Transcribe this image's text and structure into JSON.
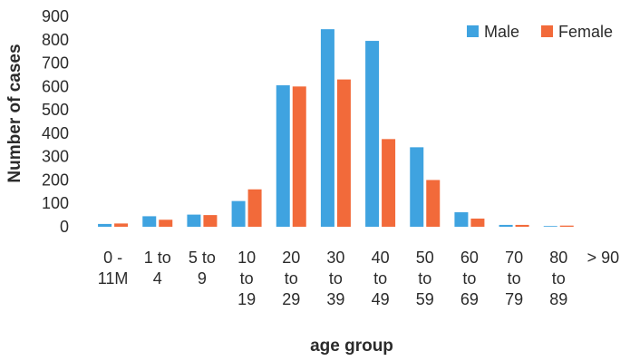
{
  "chart_data": {
    "type": "bar",
    "title": "",
    "xlabel": "age group",
    "ylabel": "Number of cases",
    "ylim": [
      0,
      900
    ],
    "yticks": [
      0,
      100,
      200,
      300,
      400,
      500,
      600,
      700,
      800,
      900
    ],
    "grid": false,
    "legend_position": "top-right",
    "categories": [
      [
        "0 -",
        "11M"
      ],
      [
        "1 to",
        "4"
      ],
      [
        "5 to",
        "9"
      ],
      [
        "10",
        "to",
        "19"
      ],
      [
        "20",
        "to",
        "29"
      ],
      [
        "30",
        "to",
        "39"
      ],
      [
        "40",
        "to",
        "49"
      ],
      [
        "50",
        "to",
        "59"
      ],
      [
        "60",
        "to",
        "69"
      ],
      [
        "70",
        "to",
        "79"
      ],
      [
        "80",
        "to",
        "89"
      ],
      [
        "> 90"
      ]
    ],
    "series": [
      {
        "name": "Male",
        "color": "#3fa3e0",
        "values": [
          12,
          45,
          52,
          110,
          605,
          845,
          795,
          340,
          62,
          8,
          3,
          0
        ]
      },
      {
        "name": "Female",
        "color": "#f26a3a",
        "values": [
          14,
          30,
          50,
          160,
          600,
          630,
          375,
          200,
          35,
          8,
          5,
          0
        ]
      }
    ]
  }
}
